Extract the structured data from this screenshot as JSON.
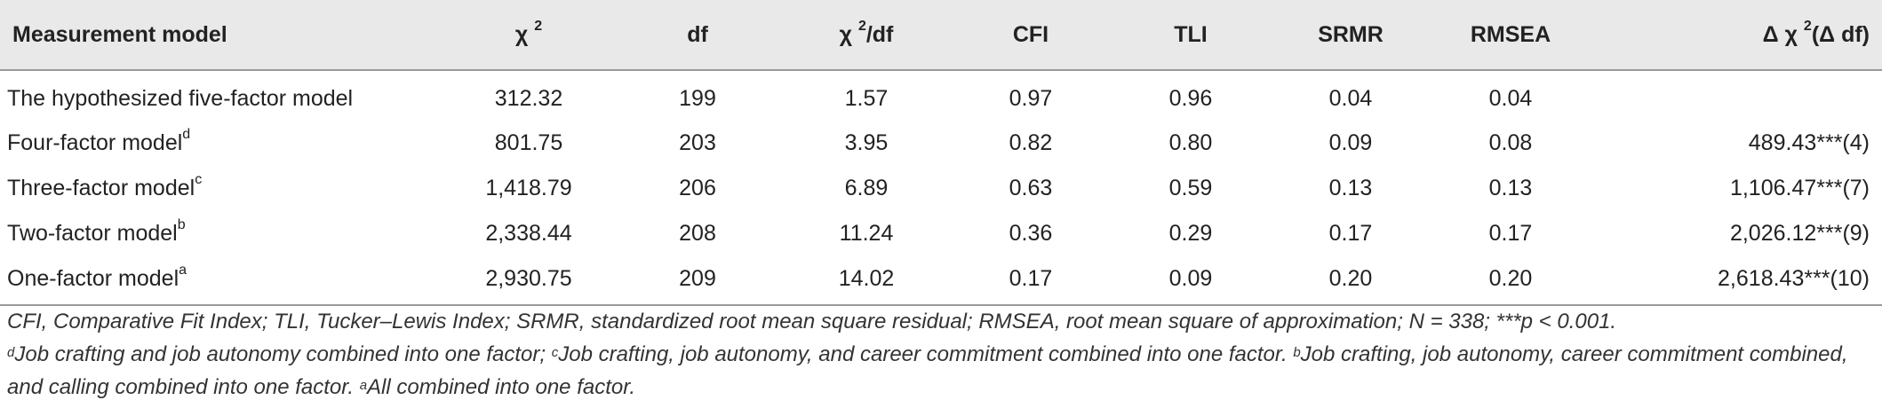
{
  "table": {
    "headers": [
      {
        "text": "Measurement model",
        "sup": ""
      },
      {
        "text": "χ ",
        "sup": "2"
      },
      {
        "text": "df",
        "sup": ""
      },
      {
        "text": "χ ",
        "sup": "2",
        "after": "/df"
      },
      {
        "text": "CFI",
        "sup": ""
      },
      {
        "text": "TLI",
        "sup": ""
      },
      {
        "text": "SRMR",
        "sup": ""
      },
      {
        "text": "RMSEA",
        "sup": ""
      },
      {
        "text": "Δ χ ",
        "sup": "2",
        "after": "(Δ df)"
      }
    ],
    "rows": [
      {
        "model": "The hypothesized five-factor model",
        "sup": "",
        "chi2": "312.32",
        "df": "199",
        "chi2df": "1.57",
        "cfi": "0.97",
        "tli": "0.96",
        "srmr": "0.04",
        "rmsea": "0.04",
        "delta": ""
      },
      {
        "model": "Four-factor model",
        "sup": "d",
        "chi2": "801.75",
        "df": "203",
        "chi2df": "3.95",
        "cfi": "0.82",
        "tli": "0.80",
        "srmr": "0.09",
        "rmsea": "0.08",
        "delta": "489.43***(4)"
      },
      {
        "model": "Three-factor model",
        "sup": "c",
        "chi2": "1,418.79",
        "df": "206",
        "chi2df": "6.89",
        "cfi": "0.63",
        "tli": "0.59",
        "srmr": "0.13",
        "rmsea": "0.13",
        "delta": "1,106.47***(7)"
      },
      {
        "model": "Two-factor model",
        "sup": "b",
        "chi2": "2,338.44",
        "df": "208",
        "chi2df": "11.24",
        "cfi": "0.36",
        "tli": "0.29",
        "srmr": "0.17",
        "rmsea": "0.17",
        "delta": "2,026.12***(9)"
      },
      {
        "model": "One-factor model",
        "sup": "a",
        "chi2": "2,930.75",
        "df": "209",
        "chi2df": "14.02",
        "cfi": "0.17",
        "tli": "0.09",
        "srmr": "0.20",
        "rmsea": "0.20",
        "delta": "2,618.43***(10)"
      }
    ]
  },
  "notes": {
    "line1": "CFI, Comparative Fit Index; TLI, Tucker–Lewis Index; SRMR, standardized root mean square residual; RMSEA, root mean square of approximation; N = 338; ***p < 0.001.",
    "d_mark": "d",
    "d_text": "Job crafting and job autonomy combined into one factor; ",
    "c_mark": "c",
    "c_text": "Job crafting, job autonomy, and career commitment combined into one factor. ",
    "b_mark": "b",
    "b_text": "Job crafting, job autonomy, career commitment combined, and calling combined into one factor. ",
    "a_mark": "a",
    "a_text": "All combined into one factor."
  }
}
